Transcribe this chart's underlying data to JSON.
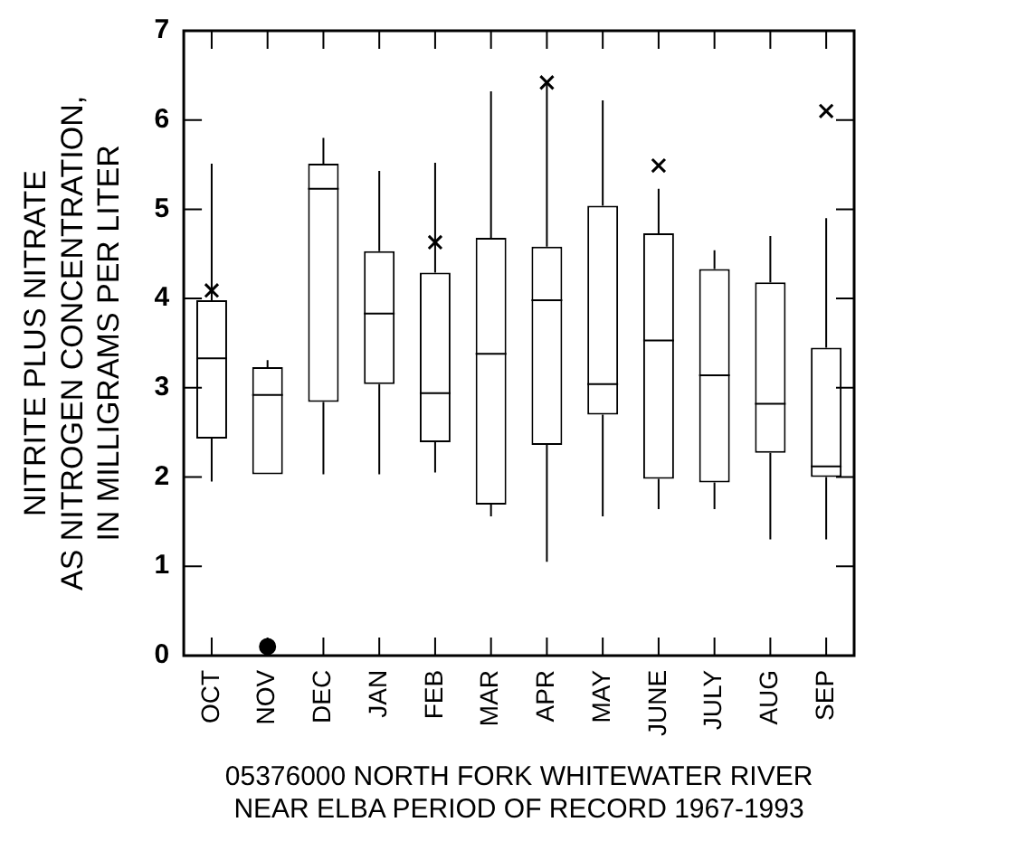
{
  "chart_data": {
    "type": "box",
    "xlabel": "05376000 NORTH FORK WHITEWATER RIVER\nNEAR ELBA PERIOD OF RECORD 1967-1993",
    "ylabel": "NITRITE PLUS NITRATE\nAS NITROGEN CONCENTRATION,\nIN MILLIGRAMS PER LITER",
    "categories": [
      "OCT",
      "NOV",
      "DEC",
      "JAN",
      "FEB",
      "MAR",
      "APR",
      "MAY",
      "JUNE",
      "JULY",
      "AUG",
      "SEP"
    ],
    "boxes": [
      {
        "low": 1.95,
        "q1": 2.43,
        "median": 3.33,
        "q3": 3.98,
        "high": 5.51
      },
      {
        "low": 2.03,
        "q1": 2.03,
        "median": 2.92,
        "q3": 3.23,
        "high": 3.31
      },
      {
        "low": 2.03,
        "q1": 2.84,
        "median": 5.23,
        "q3": 5.51,
        "high": 5.8
      },
      {
        "low": 2.03,
        "q1": 3.04,
        "median": 3.83,
        "q3": 4.53,
        "high": 5.43
      },
      {
        "low": 2.05,
        "q1": 2.39,
        "median": 2.94,
        "q3": 4.29,
        "high": 5.52
      },
      {
        "low": 1.56,
        "q1": 1.69,
        "median": 3.38,
        "q3": 4.68,
        "high": 6.32
      },
      {
        "low": 1.05,
        "q1": 2.36,
        "median": 3.98,
        "q3": 4.58,
        "high": 6.4
      },
      {
        "low": 1.56,
        "q1": 2.7,
        "median": 3.04,
        "q3": 5.04,
        "high": 6.22
      },
      {
        "low": 1.64,
        "q1": 1.98,
        "median": 3.53,
        "q3": 4.73,
        "high": 5.23
      },
      {
        "low": 1.64,
        "q1": 1.94,
        "median": 3.14,
        "q3": 4.33,
        "high": 4.54
      },
      {
        "low": 1.3,
        "q1": 2.27,
        "median": 2.82,
        "q3": 4.18,
        "high": 4.7
      },
      {
        "low": 1.3,
        "q1": 2.0,
        "median": 2.12,
        "q3": 3.45,
        "high": 4.9
      }
    ],
    "series": [
      {
        "type": "scatter",
        "marker": "cross",
        "color": "#000000",
        "x": [
          "OCT",
          "FEB",
          "APR",
          "JUNE",
          "SEP"
        ],
        "values": [
          4.09,
          4.63,
          6.42,
          5.49,
          6.1
        ]
      },
      {
        "type": "scatter",
        "marker": "circle",
        "color": "#000000",
        "x": [
          "NOV"
        ],
        "values": [
          0.1
        ]
      }
    ],
    "color": "#000000",
    "ylim": [
      0,
      7
    ],
    "yticks": [
      0,
      1,
      2,
      3,
      4,
      5,
      6,
      7
    ],
    "grid": false,
    "legend": false
  }
}
